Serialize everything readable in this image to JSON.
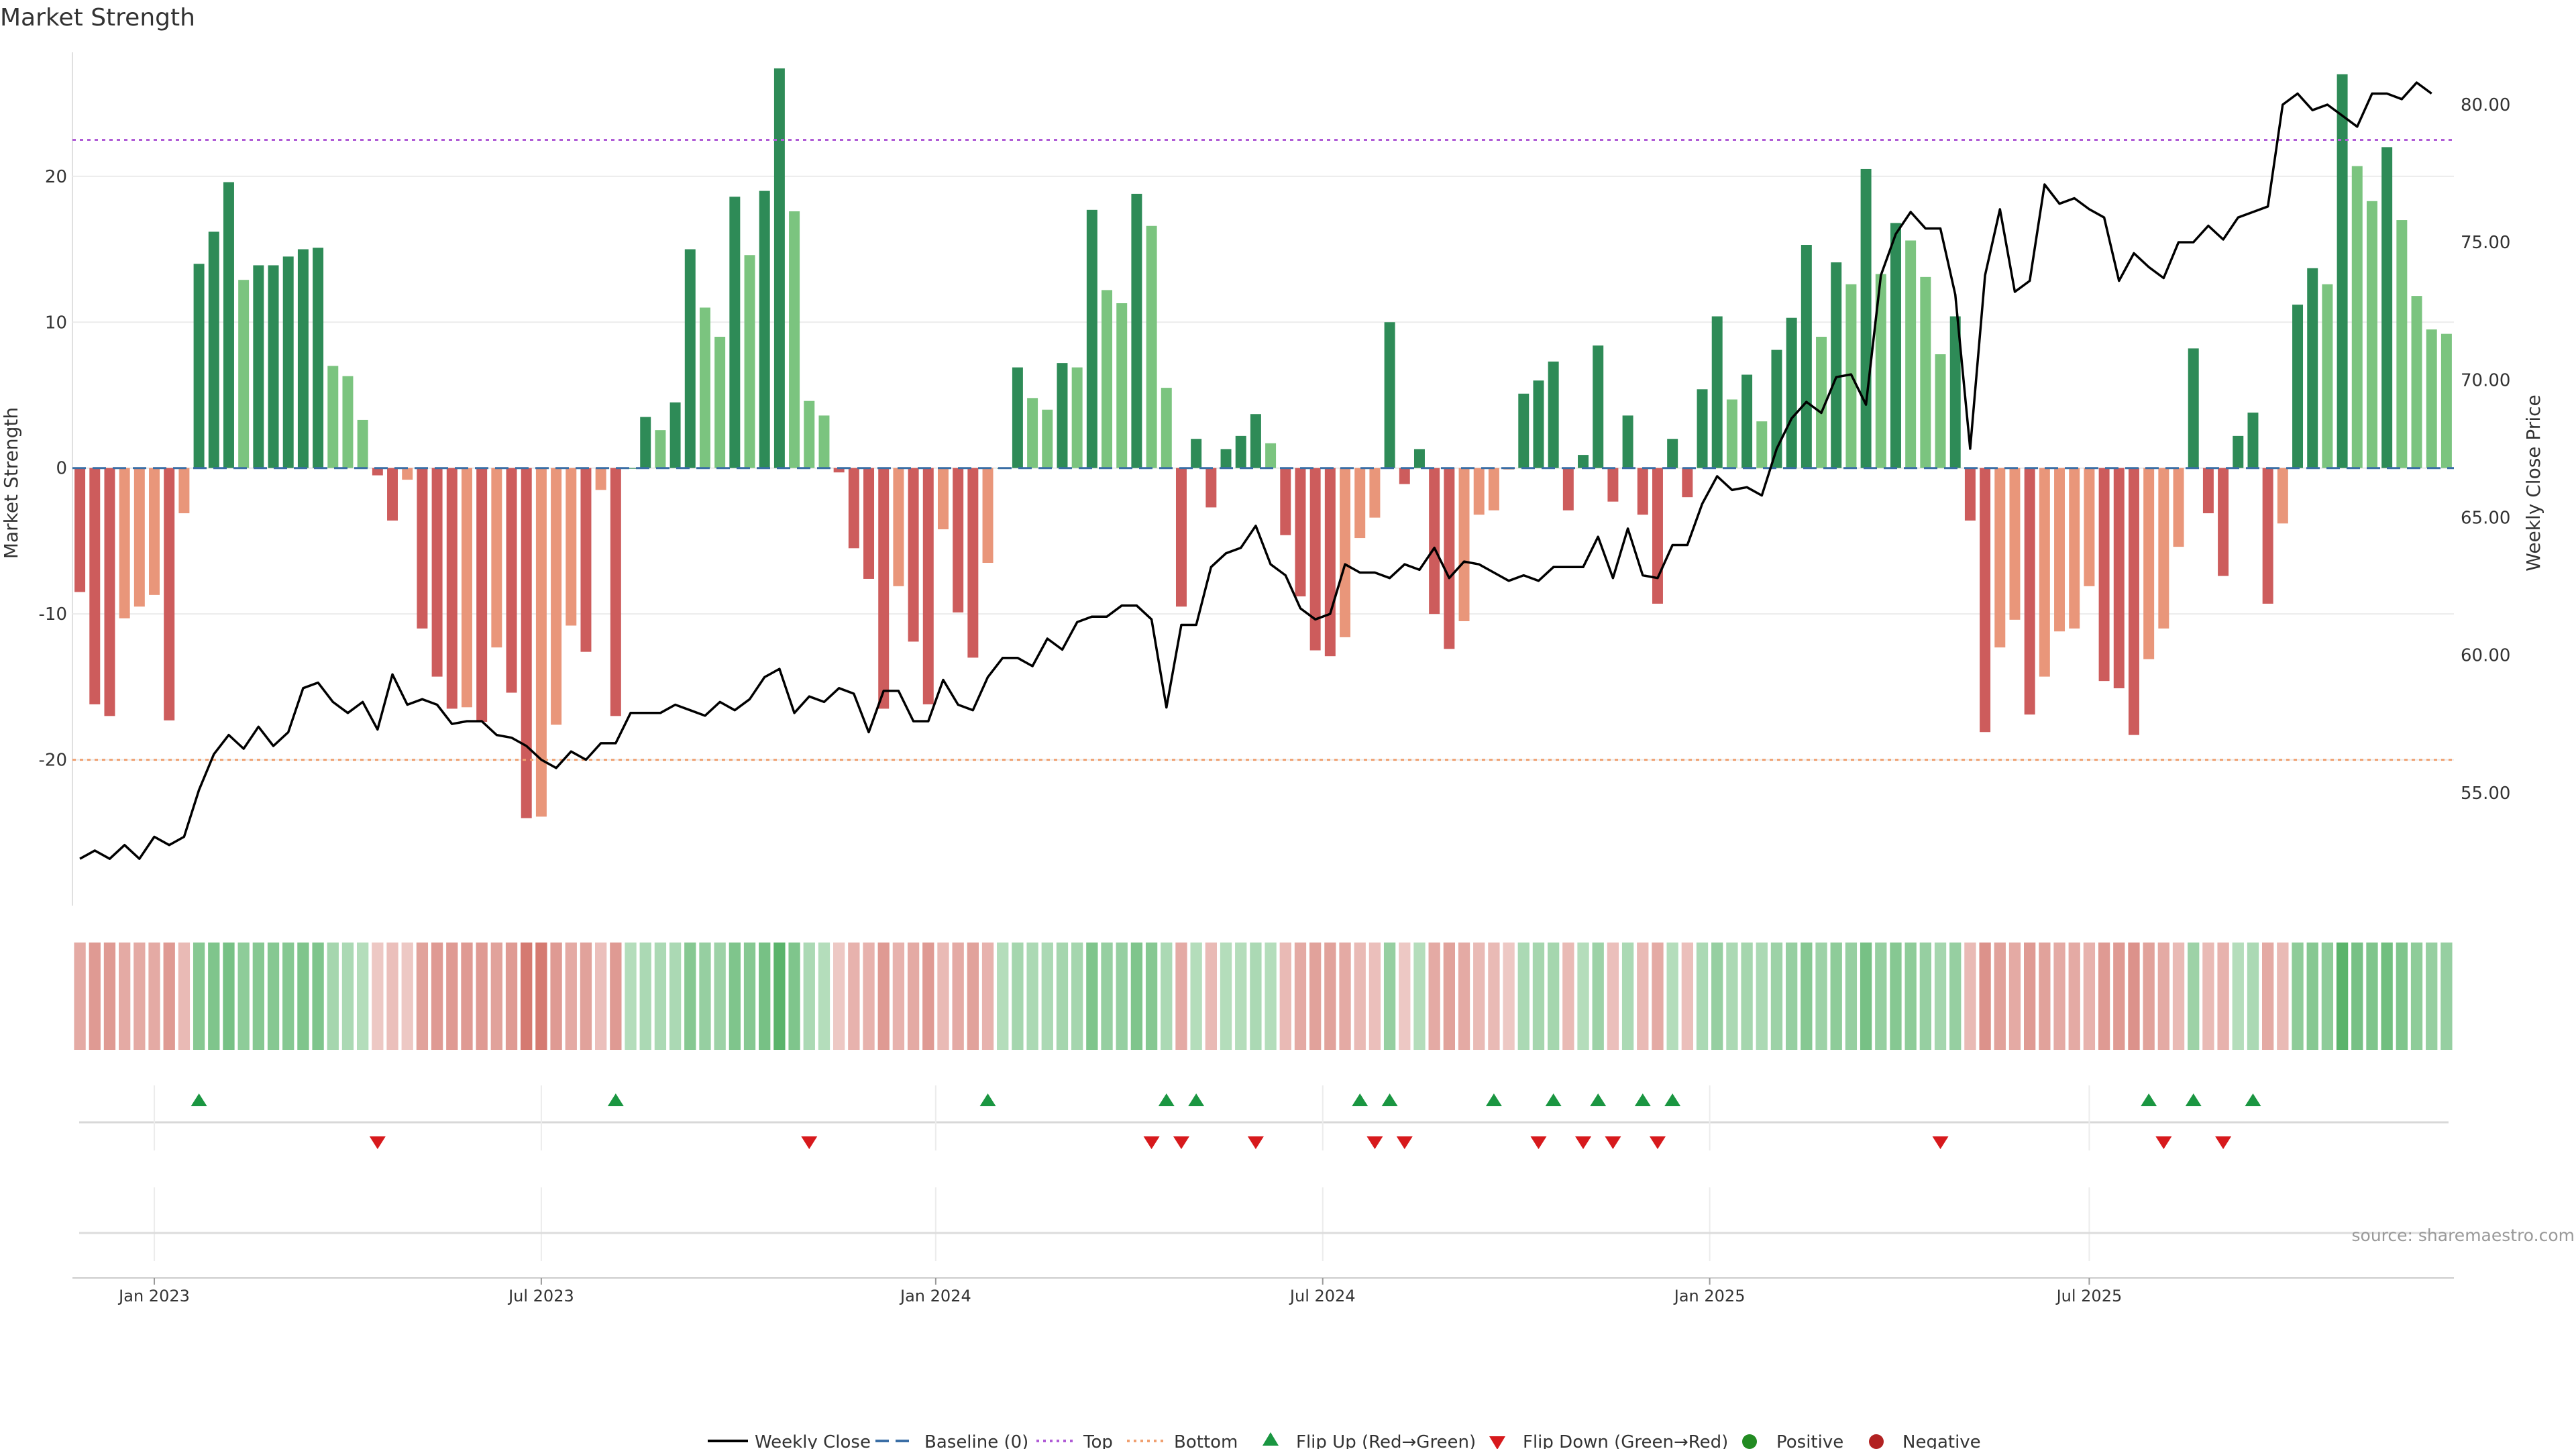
{
  "chart_data": {
    "type": "bar",
    "title": "Market Strength",
    "ylabel": "Market Strength",
    "y2label": "Weekly Close Price",
    "ylim": [
      -30,
      28.5
    ],
    "y2lim": [
      50.9,
      81.9
    ],
    "yticks": [
      -20,
      -10,
      0,
      10,
      20
    ],
    "ytick_labels": [
      "-20",
      "-10",
      "0",
      "10",
      "20"
    ],
    "y2ticks": [
      55,
      60,
      65,
      70,
      75,
      80
    ],
    "y2tick_labels": [
      "55.00",
      "60.00",
      "65.00",
      "70.00",
      "75.00",
      "80.00"
    ],
    "x_start": "2022-11-27",
    "x_end": "2025-10-12",
    "xticks": [
      {
        "week": 5,
        "label": "Jan 2023"
      },
      {
        "week": 31,
        "label": "Jul 2023"
      },
      {
        "week": 57.5,
        "label": "Jan 2024"
      },
      {
        "week": 83.5,
        "label": "Jul 2024"
      },
      {
        "week": 109.5,
        "label": "Jan 2025"
      },
      {
        "week": 135,
        "label": "Jul 2025"
      }
    ],
    "top_line": 22.5,
    "bottom_line": -20,
    "baseline": 0,
    "strength": [
      -8.5,
      -16.2,
      -17,
      -10.3,
      -9.5,
      -8.7,
      -17.3,
      -3.1,
      14,
      16.2,
      19.6,
      12.9,
      13.9,
      13.9,
      14.5,
      15,
      15.1,
      7,
      6.3,
      3.3,
      -0.5,
      -3.6,
      -0.8,
      -11,
      -14.3,
      -16.5,
      -16.4,
      -17.4,
      -12.3,
      -15.4,
      -24,
      -23.9,
      -17.6,
      -10.8,
      -12.6,
      -1.5,
      -17,
      0,
      3.5,
      2.6,
      4.5,
      15,
      11,
      9,
      18.6,
      14.6,
      19,
      27.4,
      17.6,
      4.6,
      3.6,
      -0.3,
      -5.5,
      -7.6,
      -16.5,
      -8.1,
      -11.9,
      -16.2,
      -4.2,
      -9.9,
      -13,
      -6.5,
      0,
      6.9,
      4.8,
      4,
      7.2,
      6.9,
      17.7,
      12.2,
      11.3,
      18.8,
      16.6,
      5.5,
      -9.5,
      2,
      -2.7,
      1.3,
      2.2,
      3.7,
      1.7,
      -4.6,
      -8.8,
      -12.5,
      -12.9,
      -11.6,
      -4.8,
      -3.4,
      10,
      -1.1,
      1.3,
      -10,
      -12.4,
      -10.5,
      -3.2,
      -2.9,
      -0.1,
      5.1,
      6,
      7.3,
      -2.9,
      0.9,
      8.4,
      -2.3,
      3.6,
      -3.2,
      -9.3,
      2,
      -2,
      5.4,
      10.4,
      4.7,
      6.4,
      3.2,
      8.1,
      10.3,
      15.3,
      9,
      14.1,
      12.6,
      20.5,
      13.3,
      16.8,
      15.6,
      13.1,
      7.8,
      10.4,
      -3.6,
      -18.1,
      -12.3,
      -10.4,
      -16.9,
      -14.3,
      -11.2,
      -11,
      -8.1,
      -14.6,
      -15.1,
      -18.3,
      -13.1,
      -11,
      -5.4,
      8.2,
      -3.1,
      -7.4,
      2.2,
      3.8,
      -9.3,
      -3.8,
      11.2,
      13.7,
      12.6,
      27,
      20.7,
      18.3,
      22,
      17,
      11.8,
      9.5,
      9.2
    ],
    "close": [
      52.6,
      52.9,
      52.6,
      53.1,
      52.6,
      53.4,
      53.1,
      53.4,
      55.1,
      56.4,
      57.1,
      56.6,
      57.4,
      56.7,
      57.2,
      58.8,
      59,
      58.3,
      57.9,
      58.3,
      57.3,
      59.3,
      58.2,
      58.4,
      58.2,
      57.5,
      57.6,
      57.6,
      57.1,
      57,
      56.7,
      56.2,
      55.9,
      56.5,
      56.2,
      56.8,
      56.8,
      57.9,
      57.9,
      57.9,
      58.2,
      58,
      57.8,
      58.3,
      58,
      58.4,
      59.2,
      59.5,
      57.9,
      58.5,
      58.3,
      58.8,
      58.6,
      57.2,
      58.7,
      58.7,
      57.6,
      57.6,
      59.1,
      58.2,
      58,
      59.2,
      59.9,
      59.9,
      59.6,
      60.6,
      60.2,
      61.2,
      61.4,
      61.4,
      61.8,
      61.8,
      61.3,
      58.1,
      61.1,
      61.1,
      63.2,
      63.7,
      63.9,
      64.7,
      63.3,
      62.9,
      61.7,
      61.3,
      61.5,
      63.3,
      63,
      63,
      62.8,
      63.3,
      63.1,
      63.9,
      62.8,
      63.4,
      63.3,
      63,
      62.7,
      62.9,
      62.7,
      63.2,
      63.2,
      63.2,
      64.3,
      62.8,
      64.6,
      62.9,
      62.8,
      64,
      64,
      65.5,
      66.5,
      66,
      66.1,
      65.8,
      67.5,
      68.6,
      69.2,
      68.8,
      70.1,
      70.2,
      69.1,
      73.8,
      75.3,
      76.1,
      75.5,
      75.5,
      73.1,
      67.5,
      73.8,
      76.2,
      73.2,
      73.6,
      77.1,
      76.4,
      76.6,
      76.2,
      75.9,
      73.6,
      74.6,
      74.1,
      73.7,
      75,
      75,
      75.6,
      75.1,
      75.9,
      76.1,
      76.3,
      80,
      80.4,
      79.8,
      80,
      79.6,
      79.2,
      80.4,
      80.4,
      80.2,
      80.8,
      80.4
    ],
    "signal": [
      -0.4,
      -0.5,
      -0.5,
      -0.4,
      -0.4,
      -0.4,
      -0.5,
      -0.3,
      0.55,
      0.6,
      0.65,
      0.5,
      0.55,
      0.55,
      0.55,
      0.6,
      0.6,
      0.35,
      0.3,
      0.25,
      -0.2,
      -0.25,
      -0.2,
      -0.45,
      -0.5,
      -0.5,
      -0.5,
      -0.5,
      -0.45,
      -0.5,
      -0.7,
      -0.7,
      -0.5,
      -0.4,
      -0.45,
      -0.25,
      -0.5,
      0.25,
      0.3,
      0.3,
      0.3,
      0.55,
      0.45,
      0.4,
      0.6,
      0.55,
      0.65,
      0.85,
      0.6,
      0.3,
      0.25,
      -0.2,
      -0.35,
      -0.35,
      -0.5,
      -0.35,
      -0.4,
      -0.5,
      -0.3,
      -0.4,
      -0.45,
      -0.35,
      0.25,
      0.35,
      0.3,
      0.3,
      0.35,
      0.35,
      0.6,
      0.45,
      0.45,
      0.6,
      0.55,
      0.3,
      -0.4,
      0.25,
      -0.3,
      0.25,
      0.25,
      0.3,
      0.25,
      -0.3,
      -0.4,
      -0.45,
      -0.45,
      -0.4,
      -0.3,
      -0.25,
      0.45,
      -0.2,
      0.25,
      -0.4,
      -0.45,
      -0.4,
      -0.3,
      -0.3,
      -0.2,
      0.3,
      0.35,
      0.35,
      -0.3,
      0.25,
      0.4,
      -0.25,
      0.3,
      -0.3,
      -0.4,
      0.25,
      -0.25,
      0.3,
      0.45,
      0.3,
      0.35,
      0.3,
      0.4,
      0.45,
      0.55,
      0.4,
      0.5,
      0.45,
      0.65,
      0.45,
      0.55,
      0.5,
      0.45,
      0.35,
      0.45,
      -0.3,
      -0.55,
      -0.45,
      -0.4,
      -0.5,
      -0.45,
      -0.4,
      -0.4,
      -0.35,
      -0.5,
      -0.5,
      -0.55,
      -0.45,
      -0.4,
      -0.3,
      0.4,
      -0.3,
      -0.35,
      0.25,
      0.3,
      -0.4,
      -0.3,
      0.5,
      0.55,
      0.5,
      0.85,
      0.65,
      0.6,
      0.7,
      0.6,
      0.5,
      0.45,
      0.45
    ],
    "flip_up_weeks": [
      8,
      36,
      61,
      73,
      75,
      86,
      88,
      95,
      99,
      102,
      105,
      107,
      139,
      142,
      146
    ],
    "flip_down_weeks": [
      20,
      49,
      72,
      74,
      79,
      87,
      89,
      98,
      101,
      103,
      106,
      125,
      140,
      144
    ],
    "legend": [
      "Weekly Close",
      "Baseline (0)",
      "Top",
      "Bottom",
      "Flip Up (Red→Green)",
      "Flip Down (Green→Red)",
      "Positive",
      "Negative"
    ],
    "source": "source: sharemaestro.com",
    "colors": {
      "pos_dark": "#2e8b57",
      "pos_light": "#7bc47f",
      "neg_dark": "#cd5c5c",
      "neg_light": "#e9967a",
      "price": "#000000",
      "top": "#b05cd6",
      "bottom": "#f0a070",
      "baseline": "#3a6ea5",
      "flip_up": "#1a9641",
      "flip_down": "#d7191c",
      "positive": "#228b22",
      "negative": "#b22222",
      "grid": "#ebebeb"
    }
  }
}
